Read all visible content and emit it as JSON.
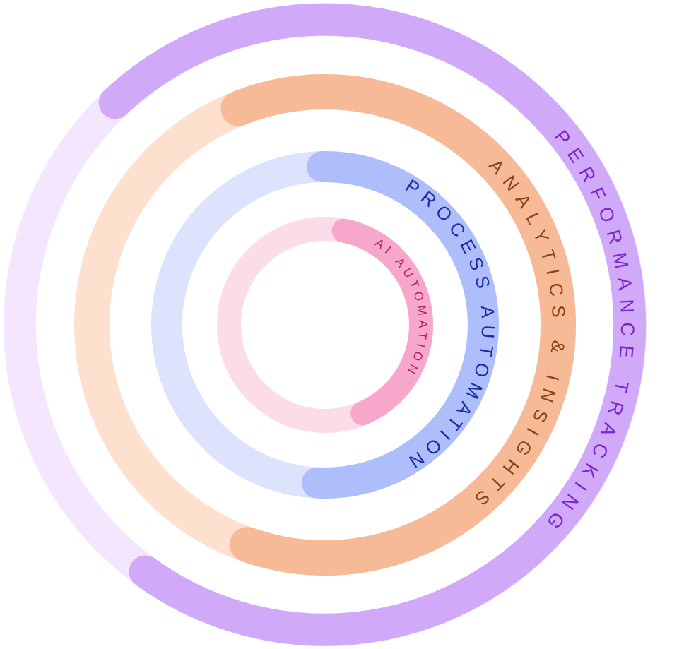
{
  "rings": [
    {
      "id": "performance",
      "label": "PERFORMANCE TRACKING",
      "colors": {
        "track": "#F3E6FE",
        "arc": "#D0A9F8",
        "text": "#7E27C9"
      }
    },
    {
      "id": "analytics",
      "label": "ANALYTICS & INSIGHTS",
      "colors": {
        "track": "#FEE0CF",
        "arc": "#F6BA97",
        "text": "#8B4415"
      }
    },
    {
      "id": "process",
      "label": "PROCESS AUTOMATION",
      "colors": {
        "track": "#DDE3FD",
        "arc": "#AEBEFB",
        "text": "#1F2DA0"
      }
    },
    {
      "id": "ai",
      "label": "AI AUTOMATION",
      "colors": {
        "track": "#FDDCEA",
        "arc": "#F7A8CA",
        "text": "#B01E63"
      }
    }
  ]
}
